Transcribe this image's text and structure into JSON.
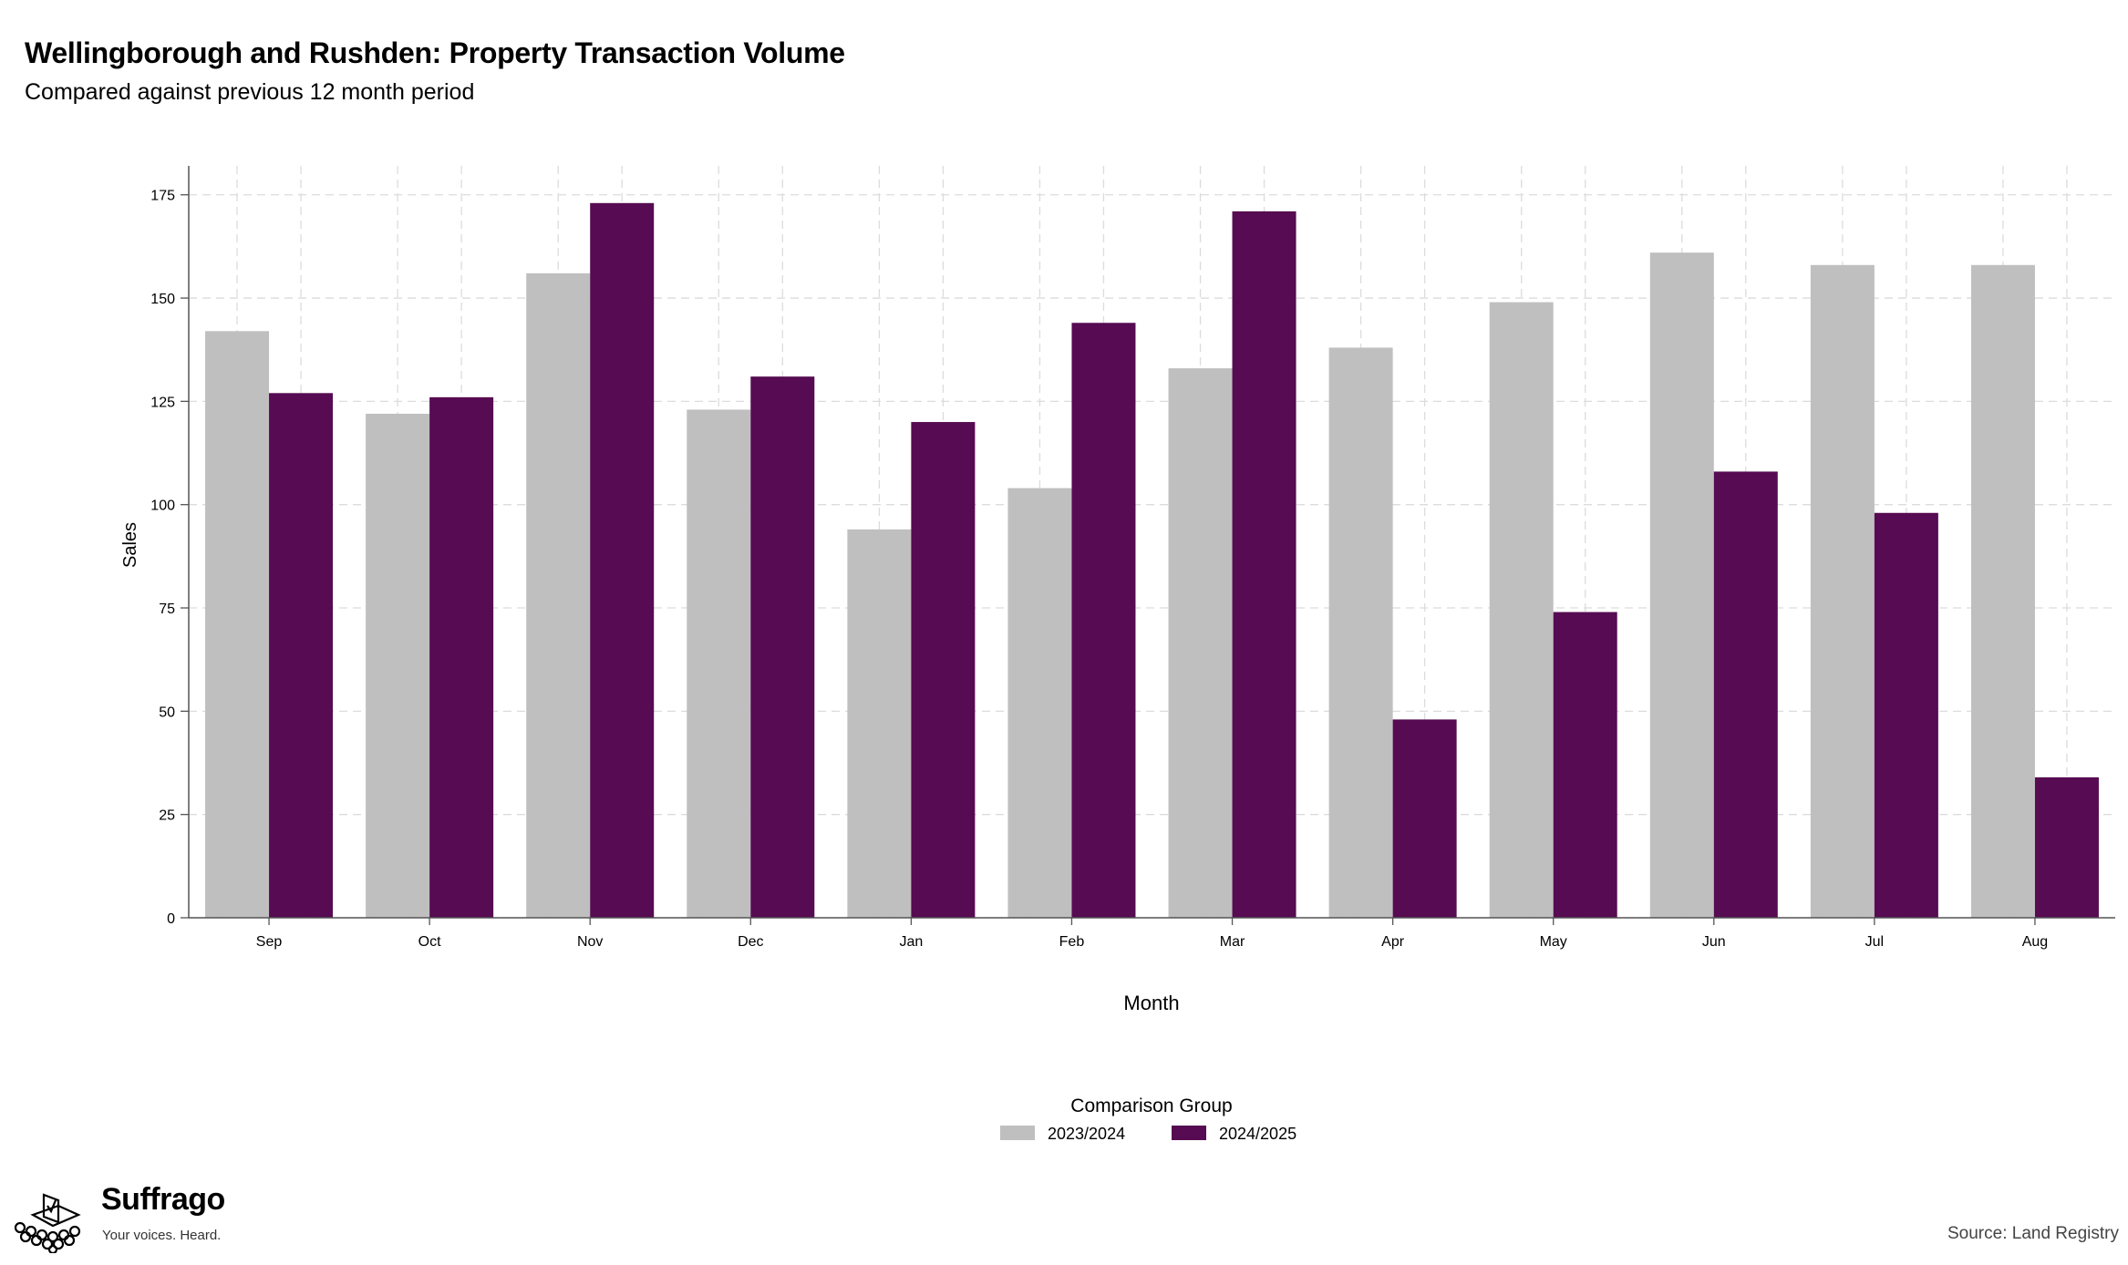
{
  "title": "Wellingborough and Rushden: Property Transaction Volume",
  "subtitle": "Compared against previous 12 month period",
  "source": "Source: Land Registry",
  "logo": {
    "name": "Suffrago",
    "tagline": "Your voices. Heard."
  },
  "chart_data": {
    "type": "bar",
    "xlabel": "Month",
    "ylabel": "Sales",
    "ylim": [
      0,
      182
    ],
    "yticks": [
      0,
      25,
      50,
      75,
      100,
      125,
      150,
      175
    ],
    "grid": true,
    "legend_title": "Comparison Group",
    "legend_position": "bottom",
    "categories": [
      "Sep",
      "Oct",
      "Nov",
      "Dec",
      "Jan",
      "Feb",
      "Mar",
      "Apr",
      "May",
      "Jun",
      "Jul",
      "Aug"
    ],
    "series": [
      {
        "name": "2023/2024",
        "color": "#bfbfbf",
        "values": [
          142,
          122,
          156,
          123,
          94,
          104,
          133,
          138,
          149,
          161,
          158,
          158
        ]
      },
      {
        "name": "2024/2025",
        "color": "#560b52",
        "values": [
          127,
          126,
          173,
          131,
          120,
          144,
          171,
          48,
          74,
          108,
          98,
          34
        ]
      }
    ]
  }
}
